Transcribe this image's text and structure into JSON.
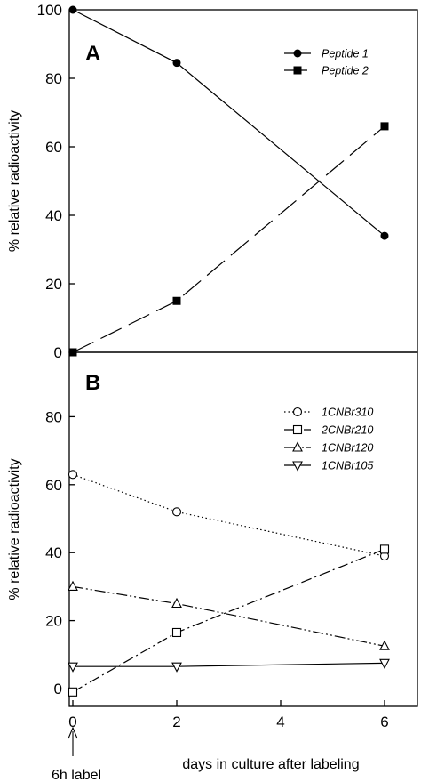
{
  "chart_data": [
    {
      "panel_label": "A",
      "type": "line",
      "ylabel": "% relative radioactivity",
      "ylim": [
        0,
        100
      ],
      "yticks": [
        0,
        20,
        40,
        60,
        80,
        100
      ],
      "xlim": [
        0,
        7
      ],
      "legend_position": "top-right",
      "series": [
        {
          "name": "Peptide 1",
          "x": [
            0,
            2,
            6
          ],
          "values": [
            100,
            84.5,
            34
          ],
          "marker": "circle-filled",
          "line": "solid"
        },
        {
          "name": "Peptide 2",
          "x": [
            0,
            2,
            6
          ],
          "values": [
            0,
            15,
            66
          ],
          "marker": "square-filled",
          "line": "long-dash"
        }
      ]
    },
    {
      "panel_label": "B",
      "type": "line",
      "ylabel": "% relative radioactivity",
      "xlabel": "days in culture after labeling",
      "ylim": [
        0,
        100
      ],
      "yticks": [
        0,
        20,
        40,
        60,
        80
      ],
      "xlim": [
        0,
        7
      ],
      "xticks": [
        0,
        2,
        4,
        6
      ],
      "legend_position": "top-right",
      "annotation": "6h label",
      "series": [
        {
          "name": "1CNBr310",
          "x": [
            0,
            2,
            6
          ],
          "values": [
            63,
            52,
            39
          ],
          "marker": "circle-open",
          "line": "dotted"
        },
        {
          "name": "2CNBr210",
          "x": [
            0,
            2,
            6
          ],
          "values": [
            -1,
            16.5,
            41
          ],
          "marker": "square-open",
          "line": "dash-dot"
        },
        {
          "name": "1CNBr120",
          "x": [
            0,
            2,
            6
          ],
          "values": [
            30,
            25,
            12.5
          ],
          "marker": "triangle-up-open",
          "line": "dash-dot-dot"
        },
        {
          "name": "1CNBr105",
          "x": [
            0,
            2,
            6
          ],
          "values": [
            6.5,
            6.5,
            7.5
          ],
          "marker": "triangle-down-open",
          "line": "solid"
        }
      ]
    }
  ]
}
